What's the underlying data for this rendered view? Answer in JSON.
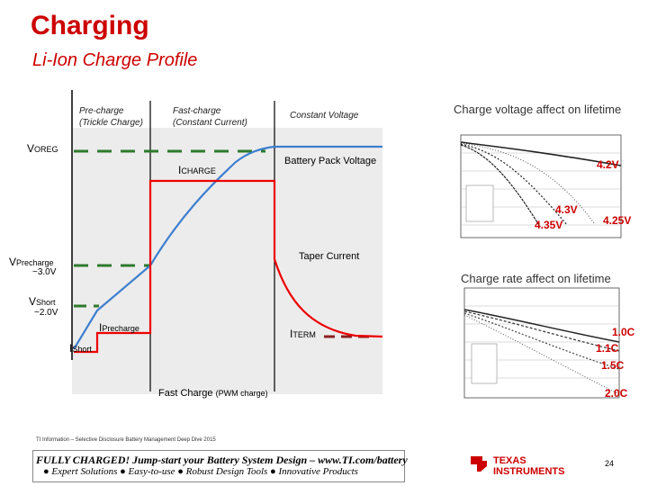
{
  "title": "Charging",
  "subtitle": "Li-Ion Charge Profile",
  "phases": {
    "precharge_l1": "Pre-charge",
    "precharge_l2": "(Trickle Charge)",
    "fastcharge_l1": "Fast-charge",
    "fastcharge_l2": "(Constant Current)",
    "cv": "Constant Voltage"
  },
  "labels": {
    "v_main": "V",
    "voreg_sub": "OREG",
    "vprecharge_sub": "Precharge",
    "vprecharge_val": "~3.0V",
    "vshort_sub": "Short",
    "vshort_val": "~2.0V",
    "i_main": "I",
    "icharge_sub": "CHARGE",
    "iprecharge_sub": "Precharge",
    "ishort_sub": "Short",
    "iterm_sub": "TERM",
    "battery_pack_voltage": "Battery Pack Voltage",
    "taper_current": "Taper Current",
    "fast_charge": "Fast Charge",
    "pwm_charge": "(PWM charge)"
  },
  "side": {
    "voltage_title": "Charge voltage affect on lifetime",
    "rate_title": "Charge rate affect on lifetime",
    "v_labels": [
      "4.2V",
      "4.3V",
      "4.35V",
      "4.25V"
    ],
    "r_labels": [
      "1.0C",
      "1.1C",
      "1.5C",
      "2.0C"
    ]
  },
  "footer": {
    "note": "TI Information – Selective Disclosure   Battery Management Deep Dive 2015",
    "banner_l1": "FULLY CHARGED! Jump-start your Battery System Design – www.TI.com/battery",
    "banner_l2": "● Expert Solutions ● Easy-to-use ● Robust Design Tools ● Innovative Products",
    "ti_l1": "TEXAS",
    "ti_l2": "INSTRUMENTS",
    "page": "24"
  },
  "colors": {
    "title": "#cc0000",
    "voltage": "#3d7fcf",
    "current": "#ee0000",
    "dashed": "#2d7a2d",
    "term": "#8b2020"
  }
}
